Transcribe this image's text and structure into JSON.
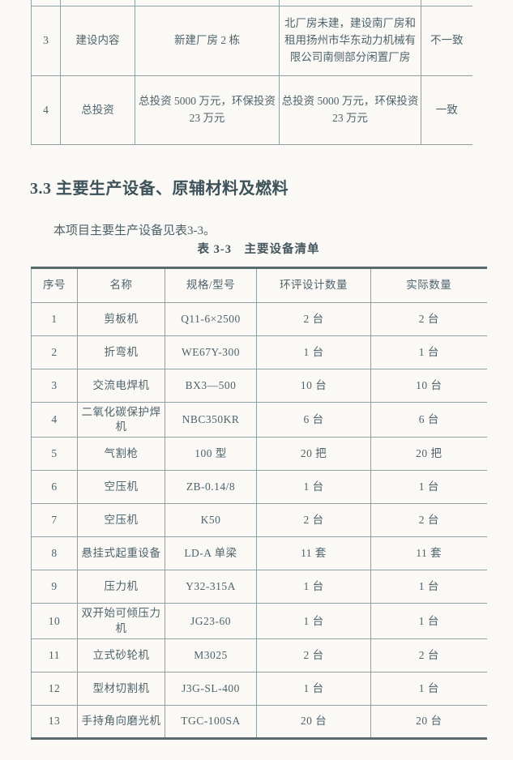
{
  "colors": {
    "page_background": "#faf9f6",
    "text": "#4f636b",
    "heading_text": "#3e525a",
    "border": "#8fa0a4",
    "border_strong": "#5a696e"
  },
  "continuation_table": {
    "columns": [
      {
        "key": "no",
        "name": "seq-cell"
      },
      {
        "key": "item",
        "name": "item-cell"
      },
      {
        "key": "approved",
        "name": "approved-content-cell"
      },
      {
        "key": "actual",
        "name": "actual-content-cell"
      },
      {
        "key": "consistency",
        "name": "consistency-cell"
      }
    ],
    "rows": [
      {
        "no": "3",
        "item": "建设内容",
        "approved": "新建厂房 2 栋",
        "actual": "北厂房未建，建设南厂房和租用扬州市华东动力机械有限公司南侧部分闲置厂房",
        "consistency": "不一致"
      },
      {
        "no": "4",
        "item": "总投资",
        "approved": "总投资 5000 万元，环保投资 23 万元",
        "actual": "总投资 5000 万元，环保投资 23 万元",
        "consistency": "一致"
      }
    ]
  },
  "section": {
    "heading": "3.3 主要生产设备、原辅材料及燃料",
    "intro": "本项目主要生产设备见表3-3。",
    "table_caption": "表 3-3　主要设备清单"
  },
  "equipment_table": {
    "headers": [
      "序号",
      "名称",
      "规格/型号",
      "环评设计数量",
      "实际数量"
    ],
    "header_names": [
      "col-seq-header",
      "col-name-header",
      "col-spec-header",
      "col-eia-qty-header",
      "col-actual-qty-header"
    ],
    "cell_names": [
      "seq-cell",
      "equipment-name-cell",
      "spec-model-cell",
      "eia-qty-cell",
      "actual-qty-cell"
    ],
    "rows": [
      [
        "1",
        "剪板机",
        "Q11-6×2500",
        "2 台",
        "2 台"
      ],
      [
        "2",
        "折弯机",
        "WE67Y-300",
        "1 台",
        "1 台"
      ],
      [
        "3",
        "交流电焊机",
        "BX3—500",
        "10 台",
        "10 台"
      ],
      [
        "4",
        "二氧化碳保护焊机",
        "NBC350KR",
        "6 台",
        "6 台"
      ],
      [
        "5",
        "气割枪",
        "100 型",
        "20 把",
        "20 把"
      ],
      [
        "6",
        "空压机",
        "ZB-0.14/8",
        "1 台",
        "1 台"
      ],
      [
        "7",
        "空压机",
        "K50",
        "2 台",
        "2 台"
      ],
      [
        "8",
        "悬挂式起重设备",
        "LD-A 单梁",
        "11 套",
        "11 套"
      ],
      [
        "9",
        "压力机",
        "Y32-315A",
        "1 台",
        "1 台"
      ],
      [
        "10",
        "双开始可倾压力机",
        "JG23-60",
        "1 台",
        "1 台"
      ],
      [
        "11",
        "立式砂轮机",
        "M3025",
        "2 台",
        "2 台"
      ],
      [
        "12",
        "型材切割机",
        "J3G-SL-400",
        "1 台",
        "1 台"
      ],
      [
        "13",
        "手持角向磨光机",
        "TGC-100SA",
        "20 台",
        "20 台"
      ]
    ]
  }
}
